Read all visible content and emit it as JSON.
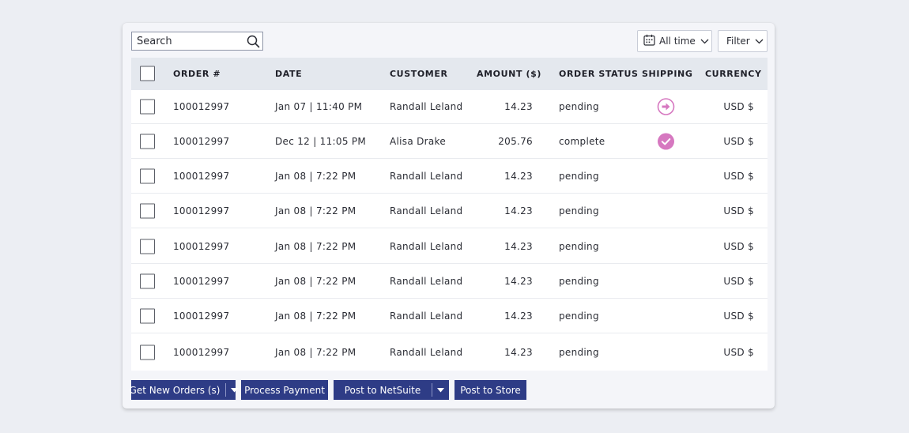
{
  "toolbar": {
    "search_placeholder": "Search",
    "time_filter_label": "All time",
    "filter_label": "Filter"
  },
  "table": {
    "columns": [
      "ORDER #",
      "DATE",
      "CUSTOMER",
      "AMOUNT ($)",
      "ORDER STATUS",
      "SHIPPING",
      "CURRENCY"
    ],
    "rows": [
      {
        "order": "100012997",
        "date": "Jan 07 | 11:40 PM",
        "customer": "Randall Leland",
        "amount": "14.23",
        "status": "pending",
        "shipping": "arrow-right-circle-icon",
        "currency": "USD $"
      },
      {
        "order": "100012997",
        "date": "Dec 12 | 11:05 PM",
        "customer": "Alisa Drake",
        "amount": "205.76",
        "status": "complete",
        "shipping": "check-circle-icon",
        "currency": "USD $"
      },
      {
        "order": "100012997",
        "date": "Jan 08 | 7:22 PM",
        "customer": "Randall Leland",
        "amount": "14.23",
        "status": "pending",
        "shipping": "",
        "currency": "USD $"
      },
      {
        "order": "100012997",
        "date": "Jan 08 | 7:22 PM",
        "customer": "Randall Leland",
        "amount": "14.23",
        "status": "pending",
        "shipping": "",
        "currency": "USD $"
      },
      {
        "order": "100012997",
        "date": "Jan 08 | 7:22 PM",
        "customer": "Randall Leland",
        "amount": "14.23",
        "status": "pending",
        "shipping": "",
        "currency": "USD $"
      },
      {
        "order": "100012997",
        "date": "Jan 08 | 7:22 PM",
        "customer": "Randall Leland",
        "amount": "14.23",
        "status": "pending",
        "shipping": "",
        "currency": "USD $"
      },
      {
        "order": "100012997",
        "date": "Jan 08 | 7:22 PM",
        "customer": "Randall Leland",
        "amount": "14.23",
        "status": "pending",
        "shipping": "",
        "currency": "USD $"
      },
      {
        "order": "100012997",
        "date": "Jan 08 | 7:22 PM",
        "customer": "Randall Leland",
        "amount": "14.23",
        "status": "pending",
        "shipping": "",
        "currency": "USD $"
      }
    ]
  },
  "actions": {
    "get_new_orders": "Get New Orders (s)",
    "process_payment": "Process Payment",
    "post_to_netsuite": "Post to NetSuite",
    "post_to_store": "Post to Store"
  },
  "colors": {
    "primary_button": "#2e3c86",
    "shipping_accent": "#d678c0",
    "header_bg": "#e4e8ee"
  }
}
